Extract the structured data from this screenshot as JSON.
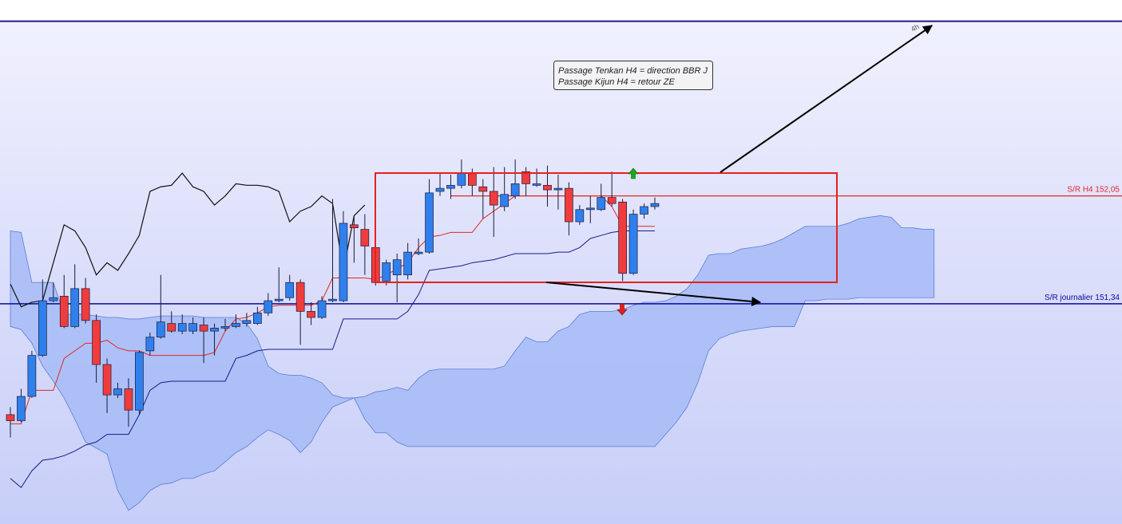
{
  "chart_data": {
    "type": "candlestick",
    "annotation": [
      "Passage Tenkan H4 = direction BBR J",
      "Passage Kijun H4 = retour ZE"
    ],
    "arrow_label": "4h",
    "ylim": [
      149.89,
      153.34
    ],
    "up_color": "#2f80ed",
    "down_color": "#f03c3c",
    "categories": [
      null,
      null,
      null,
      null,
      null,
      null,
      null,
      null,
      null,
      null,
      null,
      null,
      null,
      null,
      null,
      null,
      null,
      null,
      null,
      null,
      null,
      null,
      null,
      null,
      null,
      null,
      null,
      null,
      null,
      null,
      null,
      null,
      null,
      null,
      null,
      null,
      null,
      null,
      null,
      null,
      null,
      null,
      null,
      null,
      null,
      null,
      null,
      null,
      null,
      null,
      null,
      null,
      null,
      null,
      null,
      null,
      null,
      null,
      null,
      null,
      null,
      null,
      null,
      null,
      null,
      null,
      null,
      null,
      null,
      null,
      null,
      null,
      null,
      null,
      null,
      null,
      null,
      null,
      null,
      null,
      null,
      null,
      null,
      null,
      null,
      null,
      null
    ],
    "open": [
      150.61,
      150.57,
      150.73,
      151.0,
      151.36,
      151.39,
      151.19,
      151.44,
      151.23,
      150.94,
      150.74,
      150.78,
      150.64,
      151.03,
      151.12,
      151.21,
      151.16,
      151.16,
      151.2,
      151.16,
      151.18,
      151.19,
      151.21,
      151.21,
      151.28,
      151.36,
      151.38,
      151.48,
      151.29,
      151.25,
      151.36,
      151.36,
      151.86,
      151.83,
      151.71,
      151.49,
      151.53,
      151.53,
      151.67,
      151.68,
      152.08,
      152.1,
      152.12,
      152.2,
      152.11,
      152.08,
      151.98,
      152.05,
      152.21,
      152.12,
      152.12,
      152.09,
      152.1,
      151.88,
      151.96,
      151.96,
      152.04,
      152.01,
      151.54,
      151.93,
      151.98,
      null,
      null,
      null,
      null,
      null,
      null,
      null,
      null,
      null,
      null,
      null,
      null,
      null,
      null,
      null,
      null,
      null,
      null,
      null,
      null,
      null,
      null,
      null,
      null,
      null,
      null
    ],
    "high": [
      150.66,
      150.78,
      151.03,
      151.5,
      151.48,
      151.53,
      151.6,
      151.51,
      151.27,
      150.98,
      150.82,
      150.85,
      151.03,
      151.15,
      151.53,
      151.29,
      151.27,
      151.25,
      151.25,
      151.21,
      151.24,
      151.27,
      151.28,
      151.32,
      151.41,
      151.58,
      151.53,
      151.5,
      151.35,
      151.39,
      152.03,
      151.95,
      151.92,
      151.93,
      151.74,
      151.63,
      151.67,
      151.74,
      151.77,
      152.16,
      152.2,
      152.19,
      152.29,
      152.23,
      152.16,
      152.24,
      152.24,
      152.29,
      152.24,
      152.23,
      152.25,
      152.19,
      152.14,
      151.99,
      152.05,
      152.13,
      152.21,
      152.03,
      151.96,
      152.0,
      152.04,
      null,
      null,
      null,
      null,
      null,
      null,
      null,
      null,
      null,
      null,
      null,
      null,
      null,
      null,
      null,
      null,
      null,
      null,
      null,
      null,
      null,
      null,
      null,
      null,
      null,
      null
    ],
    "low": [
      150.46,
      150.56,
      150.72,
      150.99,
      151.35,
      151.18,
      151.18,
      151.21,
      150.82,
      150.62,
      150.72,
      150.53,
      150.61,
      151.0,
      151.11,
      151.15,
      151.14,
      151.14,
      150.95,
      151.0,
      151.16,
      151.18,
      151.19,
      151.2,
      151.26,
      151.35,
      151.36,
      151.07,
      151.2,
      151.24,
      151.35,
      151.35,
      151.61,
      151.53,
      151.46,
      151.46,
      151.35,
      151.5,
      151.66,
      151.67,
      152.05,
      152.03,
      152.1,
      152.05,
      151.9,
      151.78,
      151.95,
      152.03,
      152.05,
      152.11,
      151.98,
      151.96,
      151.79,
      151.86,
      151.87,
      151.95,
      151.98,
      151.49,
      151.53,
      151.9,
      151.96,
      null,
      null,
      null,
      null,
      null,
      null,
      null,
      null,
      null,
      null,
      null,
      null,
      null,
      null,
      null,
      null,
      null,
      null,
      null,
      null,
      null,
      null,
      null,
      null,
      null,
      null
    ],
    "close": [
      150.57,
      150.73,
      151.0,
      151.36,
      151.38,
      151.19,
      151.44,
      151.23,
      150.94,
      150.74,
      150.78,
      150.64,
      151.02,
      151.12,
      151.22,
      151.16,
      151.21,
      151.21,
      151.16,
      151.18,
      151.19,
      151.21,
      151.23,
      151.28,
      151.36,
      151.37,
      151.48,
      151.29,
      151.25,
      151.36,
      151.37,
      151.87,
      151.84,
      151.72,
      151.48,
      151.61,
      151.63,
      151.68,
      151.68,
      152.07,
      152.1,
      152.12,
      152.2,
      152.12,
      152.08,
      151.99,
      152.06,
      152.13,
      152.13,
      152.13,
      152.09,
      152.1,
      151.88,
      151.96,
      151.97,
      152.04,
      152.0,
      151.54,
      151.93,
      151.98,
      152.0,
      null,
      null,
      null,
      null,
      null,
      null,
      null,
      null,
      null,
      null,
      null,
      null,
      null,
      null,
      null,
      null,
      null,
      null,
      null,
      null,
      null,
      null,
      null,
      null,
      null,
      null
    ],
    "lines": [
      {
        "value": 153.2,
        "color": "#1a1a8c"
      },
      {
        "label": "S/R H4 152,05",
        "value": 152.05,
        "color": "#e02828"
      },
      {
        "label": "S/R journalier 151,34",
        "value": 151.34,
        "color": "#0a0a9a"
      }
    ],
    "series": [
      {
        "color": "#e02828",
        "values": [
          150.55,
          150.55,
          150.77,
          150.77,
          150.77,
          150.98,
          151.03,
          151.08,
          151.08,
          151.1,
          151.05,
          151.03,
          151.03,
          151.0,
          151.0,
          151.0,
          151.0,
          151.0,
          151.0,
          151.02,
          151.16,
          151.24,
          151.25,
          151.28,
          151.32,
          151.33,
          151.33,
          151.33,
          151.33,
          151.36,
          151.51,
          151.51,
          151.51,
          151.51,
          151.5,
          151.53,
          151.57,
          151.61,
          151.71,
          151.78,
          151.79,
          151.81,
          151.81,
          151.81,
          151.9,
          151.95,
          152.0,
          152.05,
          152.05,
          152.05,
          152.05,
          152.05,
          152.05,
          152.05,
          152.05,
          152.05,
          151.98,
          151.85,
          151.85,
          151.85,
          151.85,
          null,
          null,
          null,
          null,
          null,
          null,
          null,
          null,
          null,
          null,
          null,
          null,
          null,
          null,
          null,
          null,
          null,
          null,
          null,
          null,
          null,
          null,
          null,
          null,
          null,
          null
        ]
      },
      {
        "color": "#1a1a8c",
        "values": [
          150.19,
          150.13,
          150.24,
          150.31,
          150.32,
          150.34,
          150.37,
          150.41,
          150.43,
          150.48,
          150.48,
          150.48,
          150.61,
          150.77,
          150.82,
          150.83,
          150.83,
          150.83,
          150.83,
          150.83,
          150.83,
          150.98,
          151.0,
          151.03,
          151.04,
          151.04,
          151.04,
          151.04,
          151.04,
          151.04,
          151.04,
          151.24,
          151.24,
          151.24,
          151.24,
          151.24,
          151.24,
          151.29,
          151.4,
          151.56,
          151.57,
          151.58,
          151.59,
          151.61,
          151.62,
          151.63,
          151.65,
          151.67,
          151.67,
          151.67,
          151.67,
          151.68,
          151.68,
          151.71,
          151.77,
          151.79,
          151.81,
          151.82,
          151.82,
          151.82,
          151.82,
          null,
          null,
          null,
          null,
          null,
          null,
          null,
          null,
          null,
          null,
          null,
          null,
          null,
          null,
          null,
          null,
          null,
          null,
          null,
          null,
          null,
          null,
          null,
          null,
          null,
          null
        ]
      },
      {
        "color": "#111111",
        "values": [
          151.47,
          151.32,
          151.35,
          151.36,
          151.61,
          151.86,
          151.82,
          151.71,
          151.53,
          151.61,
          151.56,
          151.67,
          151.79,
          152.08,
          152.11,
          152.12,
          152.2,
          152.11,
          152.08,
          151.99,
          152.05,
          152.13,
          152.12,
          152.12,
          152.11,
          152.08,
          151.88,
          151.95,
          151.98,
          152.05,
          152.0,
          151.56,
          151.92,
          151.99,
          null,
          null,
          null,
          null,
          null,
          null,
          null,
          null,
          null,
          null,
          null,
          null,
          null,
          null,
          null,
          null,
          null,
          null,
          null,
          null,
          null,
          null,
          null,
          null,
          null,
          null,
          null,
          null,
          null,
          null,
          null,
          null,
          null,
          null,
          null,
          null,
          null,
          null,
          null,
          null,
          null,
          null,
          null,
          null,
          null,
          null,
          null,
          null,
          null,
          null,
          null,
          null,
          null
        ]
      }
    ],
    "cloud": {
      "color": "#a9bdf6",
      "edge": "#5b7fd6",
      "series": [
        {
          "values": [
            151.82,
            151.81,
            151.48,
            151.48,
            151.48,
            151.27,
            151.27,
            151.27,
            151.26,
            151.25,
            151.25,
            151.24,
            151.24,
            151.25,
            151.26,
            151.26,
            151.26,
            151.26,
            151.25,
            151.25,
            151.25,
            151.25,
            151.21,
            151.11,
            150.93,
            150.88,
            150.87,
            150.87,
            150.85,
            150.82,
            150.74,
            150.72,
            150.72,
            150.73,
            150.76,
            150.77,
            150.79,
            150.77,
            150.85,
            150.9,
            150.91,
            150.91,
            150.91,
            150.91,
            150.91,
            150.91,
            150.93,
            151.03,
            151.12,
            151.09,
            151.09,
            151.16,
            151.19,
            151.27,
            151.29,
            151.29,
            151.29,
            151.3,
            151.33,
            151.35,
            151.35,
            151.36,
            151.39,
            151.44,
            151.53,
            151.66,
            151.67,
            151.67,
            151.7,
            151.71,
            151.72,
            151.74,
            151.77,
            151.81,
            151.85,
            151.85,
            151.85,
            151.85,
            151.87,
            151.9,
            151.91,
            151.92,
            151.91,
            151.84,
            151.84,
            151.83,
            151.83
          ]
        },
        {
          "values": [
            151.19,
            151.17,
            151.08,
            150.93,
            150.83,
            150.72,
            150.58,
            150.43,
            150.39,
            150.35,
            150.11,
            149.98,
            150.03,
            150.11,
            150.15,
            150.16,
            150.19,
            150.19,
            150.22,
            150.24,
            150.3,
            150.36,
            150.4,
            150.46,
            150.51,
            150.48,
            150.44,
            150.36,
            150.43,
            150.56,
            150.66,
            150.69,
            150.72,
            150.58,
            150.49,
            150.49,
            150.43,
            150.4,
            150.4,
            150.4,
            150.4,
            150.4,
            150.4,
            150.4,
            150.4,
            150.4,
            150.4,
            150.4,
            150.4,
            150.4,
            150.4,
            150.4,
            150.4,
            150.4,
            150.4,
            150.4,
            150.4,
            150.4,
            150.4,
            150.4,
            150.4,
            150.48,
            150.56,
            150.66,
            150.82,
            151.03,
            151.11,
            151.14,
            151.16,
            151.17,
            151.18,
            151.19,
            151.19,
            151.19,
            151.36,
            151.36,
            151.37,
            151.37,
            151.37,
            151.38,
            151.38,
            151.38,
            151.38,
            151.38,
            151.38,
            151.38,
            151.38
          ]
        }
      ]
    }
  }
}
